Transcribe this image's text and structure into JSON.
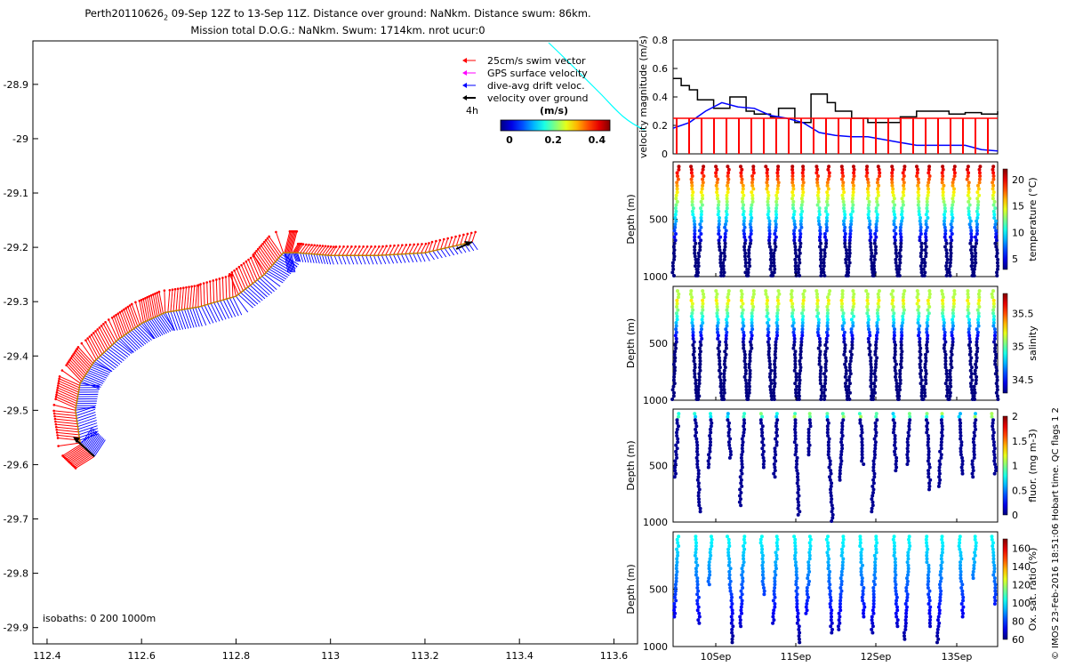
{
  "title": {
    "line1_prefix": "Perth20110626",
    "line1_sub": "2",
    "line1_rest": " 09-Sep 12Z to 13-Sep 11Z. Distance over ground: NaNkm. Distance swum: 86km.",
    "line2": "Mission total D.O.G.: NaNkm. Swum: 1714km. nrot ucur:0"
  },
  "credit": "© IMOS 23-Feb-2016 18:51:06 Hobart time. QC flags 1 2",
  "colors": {
    "swim": "#ff0000",
    "gps": "#ff00ff",
    "drift": "#0000ff",
    "ground": "#000000",
    "path": "#00ffff"
  },
  "chart_data": [
    {
      "type": "scatter",
      "name": "map",
      "xlim": [
        112.37,
        113.65
      ],
      "ylim": [
        -29.93,
        -28.82
      ],
      "xticks": [
        112.4,
        112.6,
        112.8,
        113,
        113.2,
        113.4,
        113.6
      ],
      "yticks": [
        -28.9,
        -29,
        -29.1,
        -29.2,
        -29.3,
        -29.4,
        -29.5,
        -29.6,
        -29.7,
        -29.8,
        -29.9
      ],
      "xtick_labels": [
        "112.4",
        "112.6",
        "112.8",
        "113",
        "113.2",
        "113.4",
        "113.6"
      ],
      "ytick_labels": [
        "-28.9",
        "-29",
        "-29.1",
        "-29.2",
        "-29.3",
        "-29.4",
        "-29.5",
        "-29.6",
        "-29.7",
        "-29.8",
        "-29.9"
      ],
      "track": {
        "lon": [
          112.5,
          112.47,
          112.46,
          112.47,
          112.5,
          112.55,
          112.6,
          112.65,
          112.72,
          112.8,
          112.86,
          112.9,
          112.93,
          113.0,
          113.1,
          113.2,
          113.3
        ],
        "lat": [
          -29.585,
          -29.56,
          -29.5,
          -29.45,
          -29.41,
          -29.37,
          -29.34,
          -29.32,
          -29.31,
          -29.29,
          -29.25,
          -29.21,
          -29.21,
          -29.215,
          -29.215,
          -29.21,
          -29.19
        ]
      },
      "legend": {
        "entries": [
          {
            "label": "25cm/s swim vector",
            "color": "#ff0000"
          },
          {
            "label": "GPS surface velocity",
            "color": "#ff00ff"
          },
          {
            "label": "dive-avg drift veloc.",
            "color": "#0000ff"
          },
          {
            "label": "velocity over ground",
            "color": "#000000"
          }
        ],
        "interval_label": "4h"
      },
      "colorbar": {
        "title": "(m/s)",
        "tick_labels": [
          "0",
          "0.2",
          "0.4"
        ]
      },
      "isobaths_label": "isobaths: 0   200  1000m"
    },
    {
      "type": "line",
      "name": "velocity",
      "ylabel": "velocity magnitude (m/s)",
      "ylim": [
        0,
        0.8
      ],
      "yticks": [
        0,
        0.2,
        0.4,
        0.6,
        0.8
      ],
      "ytick_labels": [
        "0",
        "0.2",
        "0.4",
        "0.6",
        "0.8"
      ],
      "xlim": [
        0,
        4
      ],
      "series": [
        {
          "color": "#000000",
          "x": [
            0,
            0.1,
            0.2,
            0.3,
            0.5,
            0.7,
            0.9,
            1.0,
            1.2,
            1.3,
            1.5,
            1.7,
            1.9,
            2.0,
            2.2,
            2.4,
            2.6,
            2.8,
            3.0,
            3.2,
            3.4,
            3.6,
            3.8,
            4.0
          ],
          "y": [
            0.53,
            0.48,
            0.45,
            0.38,
            0.32,
            0.4,
            0.3,
            0.28,
            0.26,
            0.32,
            0.22,
            0.42,
            0.36,
            0.3,
            0.25,
            0.22,
            0.22,
            0.26,
            0.3,
            0.3,
            0.28,
            0.29,
            0.28,
            0.3
          ]
        },
        {
          "color": "#0000ff",
          "x": [
            0,
            0.2,
            0.4,
            0.6,
            0.8,
            1.0,
            1.2,
            1.4,
            1.6,
            1.8,
            2.0,
            2.2,
            2.4,
            2.6,
            2.8,
            3.0,
            3.2,
            3.4,
            3.6,
            3.8,
            4.0
          ],
          "y": [
            0.18,
            0.22,
            0.3,
            0.36,
            0.33,
            0.32,
            0.27,
            0.25,
            0.22,
            0.15,
            0.13,
            0.12,
            0.12,
            0.1,
            0.08,
            0.06,
            0.06,
            0.06,
            0.06,
            0.03,
            0.02
          ]
        },
        {
          "color": "#ff0000",
          "x": [
            0,
            4
          ],
          "y": [
            0.25,
            0.25
          ]
        }
      ]
    },
    {
      "type": "scatter",
      "name": "temperature",
      "ylabel": "Depth (m)",
      "ylim": [
        0,
        1000
      ],
      "yticks": [
        500,
        1000
      ],
      "ytick_labels": [
        "500",
        "1000"
      ],
      "colorbar": {
        "label": "temperature (°C)",
        "tick_labels": [
          "5",
          "10",
          "15",
          "20"
        ],
        "min": 3,
        "max": 22
      },
      "profiles": 26,
      "max_depth": 1000
    },
    {
      "type": "scatter",
      "name": "salinity",
      "ylabel": "Depth (m)",
      "ylim": [
        0,
        1000
      ],
      "yticks": [
        500,
        1000
      ],
      "ytick_labels": [
        "500",
        "1000"
      ],
      "colorbar": {
        "label": "salinity",
        "tick_labels": [
          "34.5",
          "35",
          "35.5"
        ],
        "min": 34.3,
        "max": 35.8
      },
      "profiles": 26,
      "max_depth": 1000
    },
    {
      "type": "scatter",
      "name": "fluor",
      "ylabel": "Depth (m)",
      "ylim": [
        0,
        1000
      ],
      "yticks": [
        500,
        1000
      ],
      "ytick_labels": [
        "500",
        "1000"
      ],
      "colorbar": {
        "label": "fluor. (mg m-3)",
        "tick_labels": [
          "0",
          "0.5",
          "1",
          "1.5",
          "2"
        ],
        "min": 0,
        "max": 2
      },
      "profiles": 20,
      "max_depth": 1000
    },
    {
      "type": "scatter",
      "name": "oxygen",
      "ylabel": "Depth (m)",
      "ylim": [
        0,
        1000
      ],
      "yticks": [
        500,
        1000
      ],
      "ytick_labels": [
        "500",
        "1000"
      ],
      "xtick_labels": [
        "10Sep",
        "11Sep",
        "12Sep",
        "13Sep"
      ],
      "colorbar": {
        "label": "Ox. sat. ratio (%)",
        "tick_labels": [
          "60",
          "80",
          "100",
          "120",
          "140",
          "160"
        ],
        "min": 60,
        "max": 170
      },
      "profiles": 20,
      "max_depth": 1000
    }
  ]
}
